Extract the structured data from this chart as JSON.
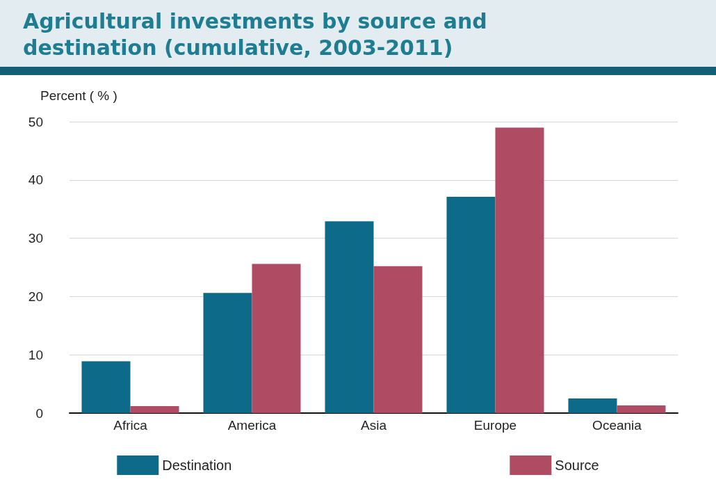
{
  "chart_data": {
    "type": "bar",
    "title": "Agricultural investments by source and\ndestination (cumulative, 2003-2011)",
    "ylabel": "Percent ( % )",
    "categories": [
      "Africa",
      "America",
      "Asia",
      "Europe",
      "Oceania"
    ],
    "series": [
      {
        "name": "Destination",
        "color": "#0e6a89",
        "values": [
          8.9,
          20.6,
          32.9,
          37.1,
          2.5
        ]
      },
      {
        "name": "Source",
        "color": "#b04b64",
        "values": [
          1.2,
          25.6,
          25.2,
          49.0,
          1.3
        ]
      }
    ],
    "ylim": [
      0,
      50
    ],
    "yticks": [
      0,
      10,
      20,
      30,
      40,
      50
    ],
    "grid": "y",
    "legend": "bottom"
  }
}
